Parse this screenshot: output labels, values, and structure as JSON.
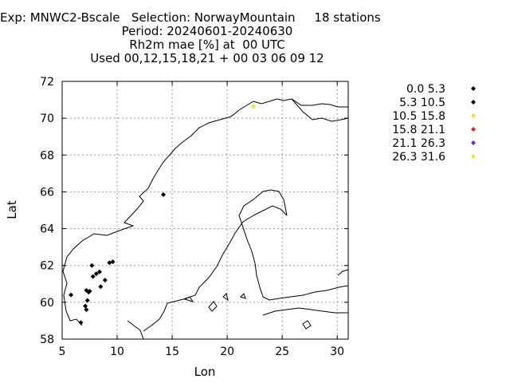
{
  "chart_data": {
    "type": "scatter",
    "title_lines": [
      "Exp: MNWC2-Bscale   Selection: NorwayMountain     18 stations",
      "Period: 20240601-20240630",
      "Rh2m mae [%] at  00 UTC",
      "Used 00,12,15,18,21 + 00 03 06 09 12"
    ],
    "xlabel": "Lon",
    "ylabel": "Lat",
    "xlim": [
      5,
      31
    ],
    "ylim": [
      58,
      72
    ],
    "xticks": [
      5,
      10,
      15,
      20,
      25,
      30
    ],
    "yticks": [
      58,
      60,
      62,
      64,
      66,
      68,
      70,
      72
    ],
    "grid": true,
    "legend_position": "right",
    "legend": [
      {
        "label": "0.0 5.3",
        "color": "#000000"
      },
      {
        "label": "5.3 10.5",
        "color": "#000000"
      },
      {
        "label": "10.5 15.8",
        "color": "#f0e040"
      },
      {
        "label": "15.8 21.1",
        "color": "#e02020"
      },
      {
        "label": "21.1 26.3",
        "color": "#8020c0"
      },
      {
        "label": "26.3 31.6",
        "color": "#f0e040"
      }
    ],
    "points": [
      {
        "lon": 14.2,
        "lat": 65.85,
        "bin": 1
      },
      {
        "lon": 22.4,
        "lat": 70.65,
        "bin": 2
      },
      {
        "lon": 7.7,
        "lat": 62.0,
        "bin": 1
      },
      {
        "lon": 8.1,
        "lat": 61.55,
        "bin": 1
      },
      {
        "lon": 8.4,
        "lat": 61.65,
        "bin": 1
      },
      {
        "lon": 7.8,
        "lat": 61.4,
        "bin": 1
      },
      {
        "lon": 9.3,
        "lat": 62.15,
        "bin": 1
      },
      {
        "lon": 9.6,
        "lat": 62.2,
        "bin": 1
      },
      {
        "lon": 8.9,
        "lat": 61.2,
        "bin": 1
      },
      {
        "lon": 8.5,
        "lat": 60.85,
        "bin": 1
      },
      {
        "lon": 7.2,
        "lat": 60.65,
        "bin": 1
      },
      {
        "lon": 7.4,
        "lat": 60.55,
        "bin": 1
      },
      {
        "lon": 7.5,
        "lat": 60.6,
        "bin": 1
      },
      {
        "lon": 7.3,
        "lat": 60.1,
        "bin": 1
      },
      {
        "lon": 7.1,
        "lat": 59.8,
        "bin": 1
      },
      {
        "lon": 7.2,
        "lat": 59.6,
        "bin": 1
      },
      {
        "lon": 5.8,
        "lat": 60.4,
        "bin": 1
      },
      {
        "lon": 6.7,
        "lat": 58.9,
        "bin": 1
      }
    ]
  }
}
